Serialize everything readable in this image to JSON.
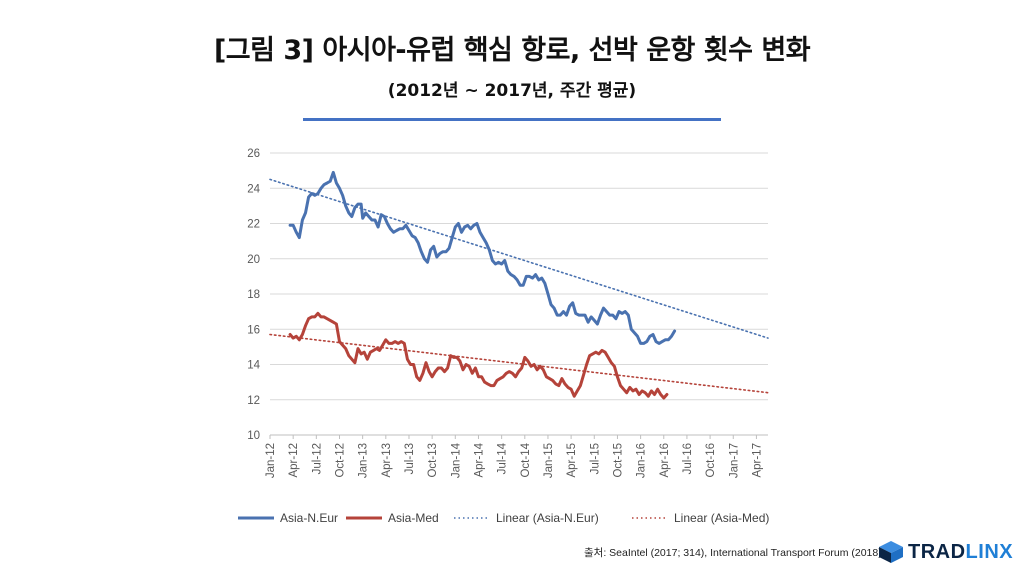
{
  "page": {
    "title": "[그림 3] 아시아-유럽 핵심 항로, 선박 운항 횟수 변화",
    "subtitle": "(2012년 ~ 2017년, 주간 평균)",
    "source": "출처: SeaIntel (2017; 314), International Transport Forum (2018)",
    "logo": {
      "text_main": "TRAD",
      "text_accent": "LINX",
      "color_dark": "#0b2545",
      "color_accent": "#1f7fd6"
    },
    "accent_rule_color": "#4472c4"
  },
  "chart_data": {
    "type": "line",
    "title": "",
    "xlabel": "",
    "ylabel": "",
    "ylim": [
      10,
      26
    ],
    "yticks": [
      10,
      12,
      14,
      16,
      18,
      20,
      22,
      24,
      26
    ],
    "xlim": [
      0,
      64.5
    ],
    "xticks": [
      {
        "label": "Jan-12",
        "x": 0
      },
      {
        "label": "Apr-12",
        "x": 3
      },
      {
        "label": "Jul-12",
        "x": 6
      },
      {
        "label": "Oct-12",
        "x": 9
      },
      {
        "label": "Jan-13",
        "x": 12
      },
      {
        "label": "Apr-13",
        "x": 15
      },
      {
        "label": "Jul-13",
        "x": 18
      },
      {
        "label": "Oct-13",
        "x": 21
      },
      {
        "label": "Jan-14",
        "x": 24
      },
      {
        "label": "Apr-14",
        "x": 27
      },
      {
        "label": "Jul-14",
        "x": 30
      },
      {
        "label": "Oct-14",
        "x": 33
      },
      {
        "label": "Jan-15",
        "x": 36
      },
      {
        "label": "Apr-15",
        "x": 39
      },
      {
        "label": "Jul-15",
        "x": 42
      },
      {
        "label": "Oct-15",
        "x": 45
      },
      {
        "label": "Jan-16",
        "x": 48
      },
      {
        "label": "Apr-16",
        "x": 51
      },
      {
        "label": "Jul-16",
        "x": 54
      },
      {
        "label": "Oct-16",
        "x": 57
      },
      {
        "label": "Jan-17",
        "x": 60
      },
      {
        "label": "Apr-17",
        "x": 63
      }
    ],
    "grid": true,
    "legend_position": "bottom",
    "series": [
      {
        "name": "Asia-N.Eur",
        "color": "#4a72b0",
        "points": [
          [
            2.6,
            21.9
          ],
          [
            3.0,
            21.9
          ],
          [
            3.4,
            21.5
          ],
          [
            3.8,
            21.2
          ],
          [
            4.2,
            22.2
          ],
          [
            4.6,
            22.6
          ],
          [
            5.0,
            23.5
          ],
          [
            5.4,
            23.7
          ],
          [
            5.8,
            23.6
          ],
          [
            6.2,
            23.7
          ],
          [
            6.6,
            24.0
          ],
          [
            7.0,
            24.2
          ],
          [
            7.4,
            24.3
          ],
          [
            7.8,
            24.4
          ],
          [
            8.2,
            24.9
          ],
          [
            8.6,
            24.3
          ],
          [
            9.0,
            24.0
          ],
          [
            9.4,
            23.6
          ],
          [
            9.8,
            23.0
          ],
          [
            10.2,
            22.6
          ],
          [
            10.6,
            22.4
          ],
          [
            11.0,
            22.9
          ],
          [
            11.4,
            23.1
          ],
          [
            11.8,
            23.1
          ],
          [
            12.0,
            22.3
          ],
          [
            12.4,
            22.6
          ],
          [
            12.8,
            22.4
          ],
          [
            13.2,
            22.2
          ],
          [
            13.6,
            22.2
          ],
          [
            14.0,
            21.8
          ],
          [
            14.4,
            22.5
          ],
          [
            14.8,
            22.4
          ],
          [
            15.2,
            22.0
          ],
          [
            15.6,
            21.7
          ],
          [
            16.0,
            21.5
          ],
          [
            16.4,
            21.6
          ],
          [
            16.8,
            21.7
          ],
          [
            17.2,
            21.7
          ],
          [
            17.6,
            21.9
          ],
          [
            18.0,
            21.6
          ],
          [
            18.4,
            21.3
          ],
          [
            18.8,
            21.2
          ],
          [
            19.2,
            20.9
          ],
          [
            19.6,
            20.4
          ],
          [
            20.0,
            20.0
          ],
          [
            20.4,
            19.8
          ],
          [
            20.8,
            20.5
          ],
          [
            21.2,
            20.7
          ],
          [
            21.6,
            20.1
          ],
          [
            22.0,
            20.3
          ],
          [
            22.4,
            20.4
          ],
          [
            22.8,
            20.4
          ],
          [
            23.2,
            20.6
          ],
          [
            23.6,
            21.2
          ],
          [
            24.0,
            21.8
          ],
          [
            24.4,
            22.0
          ],
          [
            24.8,
            21.5
          ],
          [
            25.2,
            21.8
          ],
          [
            25.6,
            21.9
          ],
          [
            26.0,
            21.7
          ],
          [
            26.4,
            21.9
          ],
          [
            26.8,
            22.0
          ],
          [
            27.2,
            21.5
          ],
          [
            27.6,
            21.2
          ],
          [
            28.0,
            20.9
          ],
          [
            28.4,
            20.5
          ],
          [
            28.8,
            19.9
          ],
          [
            29.2,
            19.7
          ],
          [
            29.6,
            19.8
          ],
          [
            30.0,
            19.7
          ],
          [
            30.4,
            19.9
          ],
          [
            30.8,
            19.3
          ],
          [
            31.2,
            19.1
          ],
          [
            31.6,
            19.0
          ],
          [
            32.0,
            18.8
          ],
          [
            32.4,
            18.5
          ],
          [
            32.8,
            18.5
          ],
          [
            33.2,
            19.0
          ],
          [
            33.6,
            19.0
          ],
          [
            34.0,
            18.9
          ],
          [
            34.4,
            19.1
          ],
          [
            34.8,
            18.8
          ],
          [
            35.2,
            18.9
          ],
          [
            35.6,
            18.6
          ],
          [
            36.0,
            18.0
          ],
          [
            36.4,
            17.4
          ],
          [
            36.8,
            17.2
          ],
          [
            37.2,
            16.8
          ],
          [
            37.6,
            16.8
          ],
          [
            38.0,
            17.0
          ],
          [
            38.4,
            16.8
          ],
          [
            38.8,
            17.3
          ],
          [
            39.2,
            17.5
          ],
          [
            39.6,
            16.9
          ],
          [
            40.0,
            16.8
          ],
          [
            40.4,
            16.8
          ],
          [
            40.8,
            16.8
          ],
          [
            41.2,
            16.4
          ],
          [
            41.6,
            16.7
          ],
          [
            42.0,
            16.5
          ],
          [
            42.4,
            16.3
          ],
          [
            42.8,
            16.8
          ],
          [
            43.2,
            17.2
          ],
          [
            43.6,
            17.0
          ],
          [
            44.0,
            16.8
          ],
          [
            44.4,
            16.8
          ],
          [
            44.8,
            16.6
          ],
          [
            45.2,
            17.0
          ],
          [
            45.6,
            16.9
          ],
          [
            46.0,
            17.0
          ],
          [
            46.4,
            16.8
          ],
          [
            46.8,
            16.0
          ],
          [
            47.2,
            15.8
          ],
          [
            47.6,
            15.6
          ],
          [
            48.0,
            15.2
          ],
          [
            48.4,
            15.2
          ],
          [
            48.8,
            15.3
          ],
          [
            49.2,
            15.6
          ],
          [
            49.6,
            15.7
          ],
          [
            50.0,
            15.3
          ],
          [
            50.4,
            15.2
          ],
          [
            50.8,
            15.3
          ],
          [
            51.2,
            15.4
          ],
          [
            51.6,
            15.4
          ],
          [
            52.0,
            15.6
          ],
          [
            52.4,
            15.9
          ]
        ]
      },
      {
        "name": "Asia-Med",
        "color": "#b5433a",
        "points": [
          [
            2.6,
            15.7
          ],
          [
            3.0,
            15.5
          ],
          [
            3.4,
            15.6
          ],
          [
            3.8,
            15.4
          ],
          [
            4.2,
            15.7
          ],
          [
            4.6,
            16.2
          ],
          [
            5.0,
            16.6
          ],
          [
            5.4,
            16.7
          ],
          [
            5.8,
            16.7
          ],
          [
            6.2,
            16.9
          ],
          [
            6.6,
            16.7
          ],
          [
            7.0,
            16.7
          ],
          [
            7.4,
            16.6
          ],
          [
            7.8,
            16.5
          ],
          [
            8.2,
            16.4
          ],
          [
            8.6,
            16.3
          ],
          [
            9.0,
            15.3
          ],
          [
            9.4,
            15.1
          ],
          [
            9.8,
            14.9
          ],
          [
            10.2,
            14.5
          ],
          [
            10.6,
            14.3
          ],
          [
            11.0,
            14.1
          ],
          [
            11.4,
            14.9
          ],
          [
            11.8,
            14.6
          ],
          [
            12.2,
            14.7
          ],
          [
            12.6,
            14.3
          ],
          [
            13.0,
            14.7
          ],
          [
            13.4,
            14.8
          ],
          [
            13.8,
            14.9
          ],
          [
            14.2,
            14.8
          ],
          [
            14.6,
            15.1
          ],
          [
            15.0,
            15.4
          ],
          [
            15.4,
            15.2
          ],
          [
            15.8,
            15.2
          ],
          [
            16.2,
            15.3
          ],
          [
            16.6,
            15.2
          ],
          [
            17.0,
            15.3
          ],
          [
            17.4,
            15.2
          ],
          [
            17.8,
            14.3
          ],
          [
            18.2,
            14.0
          ],
          [
            18.6,
            14.0
          ],
          [
            19.0,
            13.3
          ],
          [
            19.4,
            13.1
          ],
          [
            19.8,
            13.5
          ],
          [
            20.2,
            14.1
          ],
          [
            20.6,
            13.6
          ],
          [
            21.0,
            13.3
          ],
          [
            21.4,
            13.6
          ],
          [
            21.8,
            13.8
          ],
          [
            22.2,
            13.8
          ],
          [
            22.6,
            13.6
          ],
          [
            23.0,
            13.8
          ],
          [
            23.4,
            14.5
          ],
          [
            23.8,
            14.4
          ],
          [
            24.2,
            14.4
          ],
          [
            24.6,
            14.2
          ],
          [
            25.0,
            13.7
          ],
          [
            25.4,
            14.0
          ],
          [
            25.8,
            13.9
          ],
          [
            26.2,
            13.5
          ],
          [
            26.6,
            13.8
          ],
          [
            27.0,
            13.3
          ],
          [
            27.4,
            13.3
          ],
          [
            27.8,
            13.0
          ],
          [
            28.2,
            12.9
          ],
          [
            28.6,
            12.8
          ],
          [
            29.0,
            12.8
          ],
          [
            29.4,
            13.1
          ],
          [
            29.8,
            13.2
          ],
          [
            30.2,
            13.3
          ],
          [
            30.6,
            13.5
          ],
          [
            31.0,
            13.6
          ],
          [
            31.4,
            13.5
          ],
          [
            31.8,
            13.3
          ],
          [
            32.2,
            13.6
          ],
          [
            32.6,
            13.8
          ],
          [
            33.0,
            14.4
          ],
          [
            33.4,
            14.2
          ],
          [
            33.8,
            13.9
          ],
          [
            34.2,
            14.0
          ],
          [
            34.6,
            13.7
          ],
          [
            35.0,
            13.9
          ],
          [
            35.4,
            13.7
          ],
          [
            35.8,
            13.3
          ],
          [
            36.2,
            13.2
          ],
          [
            36.6,
            13.1
          ],
          [
            37.0,
            12.9
          ],
          [
            37.4,
            12.8
          ],
          [
            37.8,
            13.2
          ],
          [
            38.2,
            12.9
          ],
          [
            38.6,
            12.7
          ],
          [
            39.0,
            12.6
          ],
          [
            39.4,
            12.2
          ],
          [
            39.8,
            12.5
          ],
          [
            40.2,
            12.8
          ],
          [
            40.6,
            13.4
          ],
          [
            41.0,
            14.0
          ],
          [
            41.4,
            14.5
          ],
          [
            41.8,
            14.6
          ],
          [
            42.2,
            14.7
          ],
          [
            42.6,
            14.6
          ],
          [
            43.0,
            14.8
          ],
          [
            43.4,
            14.7
          ],
          [
            43.8,
            14.4
          ],
          [
            44.2,
            14.1
          ],
          [
            44.6,
            13.9
          ],
          [
            45.0,
            13.3
          ],
          [
            45.4,
            12.8
          ],
          [
            45.8,
            12.6
          ],
          [
            46.2,
            12.4
          ],
          [
            46.6,
            12.7
          ],
          [
            47.0,
            12.5
          ],
          [
            47.4,
            12.6
          ],
          [
            47.8,
            12.3
          ],
          [
            48.2,
            12.5
          ],
          [
            48.6,
            12.4
          ],
          [
            49.0,
            12.2
          ],
          [
            49.4,
            12.5
          ],
          [
            49.8,
            12.3
          ],
          [
            50.2,
            12.6
          ],
          [
            50.6,
            12.3
          ],
          [
            51.0,
            12.1
          ],
          [
            51.4,
            12.3
          ]
        ]
      },
      {
        "name": "Linear (Asia-N.Eur)",
        "color": "#4a72b0",
        "style": "dotted",
        "points": [
          [
            0,
            24.5
          ],
          [
            64.5,
            15.5
          ]
        ]
      },
      {
        "name": "Linear (Asia-Med)",
        "color": "#b5433a",
        "style": "dotted",
        "points": [
          [
            0,
            15.7
          ],
          [
            64.5,
            12.4
          ]
        ]
      }
    ]
  }
}
